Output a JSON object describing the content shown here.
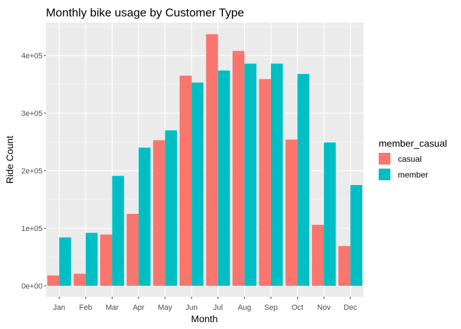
{
  "chart_data": {
    "type": "bar",
    "title": "Monthly bike usage by Customer Type",
    "xlabel": "Month",
    "ylabel": "Ride Count",
    "categories": [
      "Jan",
      "Feb",
      "Mar",
      "Apr",
      "May",
      "Jun",
      "Jul",
      "Aug",
      "Sep",
      "Oct",
      "Nov",
      "Dec"
    ],
    "series": [
      {
        "name": "casual",
        "color": "#F8766D",
        "values": [
          18000,
          21000,
          89000,
          125000,
          253000,
          365000,
          437000,
          408000,
          359000,
          254000,
          106000,
          69000
        ]
      },
      {
        "name": "member",
        "color": "#00BFC4",
        "values": [
          84000,
          92000,
          191000,
          240000,
          270000,
          353000,
          374000,
          386000,
          386000,
          368000,
          249000,
          175000
        ]
      }
    ],
    "ylim": [
      0,
      450000
    ],
    "yticks": [
      0,
      100000,
      200000,
      300000,
      400000
    ],
    "ytick_labels": [
      "0e+00",
      "1e+05",
      "2e+05",
      "3e+05",
      "4e+05"
    ],
    "legend": {
      "title": "member_casual",
      "position": "right"
    },
    "grid": true,
    "panel_background": "#EBEBEB"
  }
}
